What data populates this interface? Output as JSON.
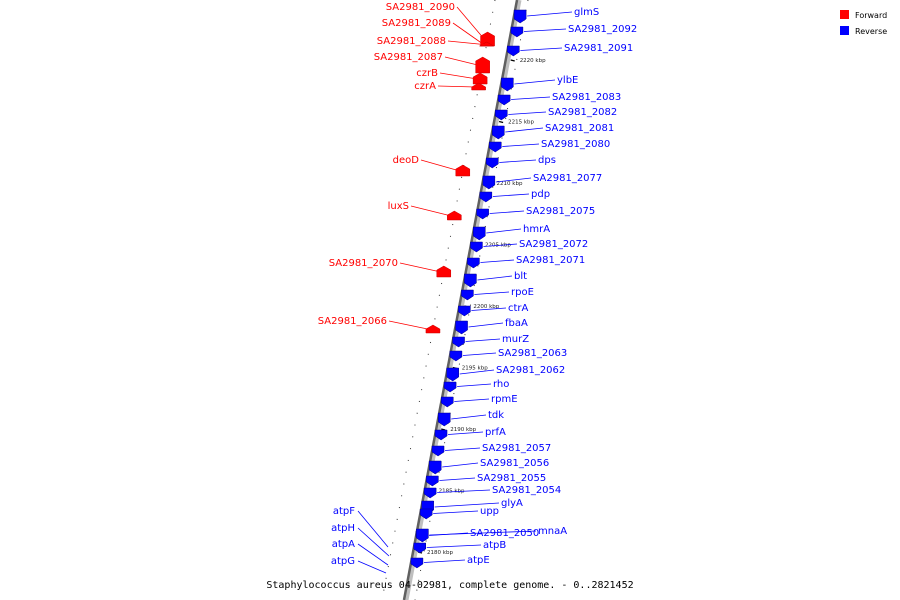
{
  "caption": "Staphylococcus aureus 04-02981, complete genome. - 0..2821452",
  "legend": [
    {
      "label": "Forward",
      "color": "#ff0000"
    },
    {
      "label": "Reverse",
      "color": "#0000ff"
    }
  ],
  "colors": {
    "forward": "#ff0000",
    "reverse": "#0000ff",
    "backbone": "#808080"
  },
  "ticks": [
    {
      "kbp": 2220,
      "label": "2220 kbp"
    },
    {
      "kbp": 2215,
      "label": "2215 kbp"
    },
    {
      "kbp": 2210,
      "label": "2210 kbp"
    },
    {
      "kbp": 2205,
      "label": "2205 kbp"
    },
    {
      "kbp": 2200,
      "label": "2200 kbp"
    },
    {
      "kbp": 2195,
      "label": "2195 kbp"
    },
    {
      "kbp": 2190,
      "label": "2190 kbp"
    },
    {
      "kbp": 2185,
      "label": "2185 kbp"
    },
    {
      "kbp": 2180,
      "label": "2180 kbp"
    }
  ],
  "forward_genes": [
    "SA2981_2090",
    "SA2981_2089",
    "SA2981_2088",
    "SA2981_2087",
    "czrB",
    "czrA",
    "deoD",
    "luxS",
    "SA2981_2070",
    "SA2981_2066"
  ],
  "reverse_genes": [
    "glmS",
    "SA2981_2092",
    "SA2981_2091",
    "ylbE",
    "SA2981_2083",
    "SA2981_2082",
    "SA2981_2081",
    "SA2981_2080",
    "dps",
    "SA2981_2077",
    "pdp",
    "SA2981_2075",
    "hmrA",
    "SA2981_2072",
    "SA2981_2071",
    "blt",
    "rpoE",
    "ctrA",
    "fbaA",
    "murZ",
    "SA2981_2063",
    "SA2981_2062",
    "rho",
    "rpmE",
    "tdk",
    "prfA",
    "SA2981_2057",
    "SA2981_2056",
    "SA2981_2055",
    "SA2981_2054",
    "glyA",
    "upp",
    "SA2981_2050",
    "mnaA",
    "atpB",
    "atpE"
  ],
  "left_reverse_genes": [
    "atpF",
    "atpH",
    "atpA",
    "atpG"
  ]
}
